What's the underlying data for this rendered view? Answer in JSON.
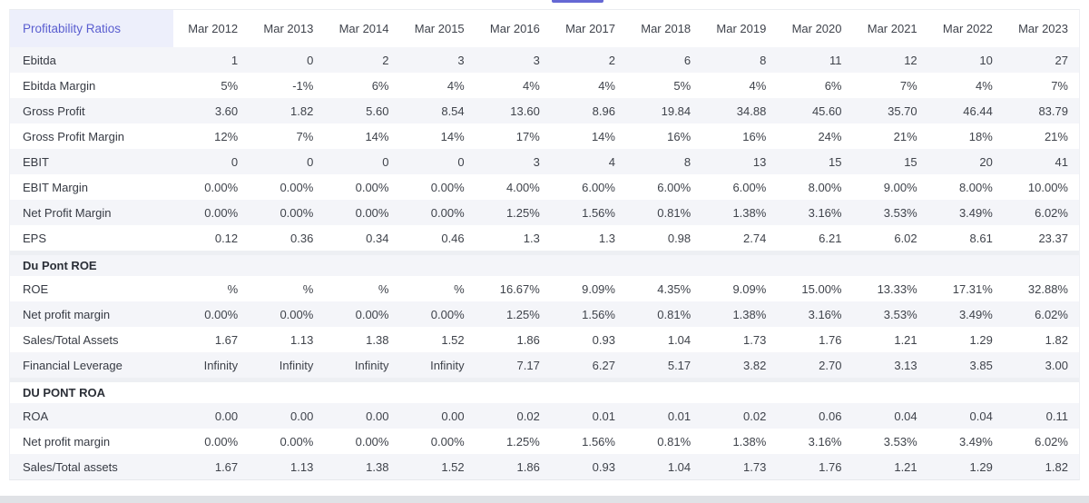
{
  "tabs": {
    "active_tab_indicator_color": "#6568d4"
  },
  "colors": {
    "title_text": "#5a5ed0",
    "title_background": "#edeffb",
    "row_stripe": "#f4f5f9",
    "bottom_bar": "#e0e2e6"
  },
  "table": {
    "title": "Profitability Ratios",
    "columns": [
      "Mar 2012",
      "Mar 2013",
      "Mar 2014",
      "Mar 2015",
      "Mar 2016",
      "Mar 2017",
      "Mar 2018",
      "Mar 2019",
      "Mar 2020",
      "Mar 2021",
      "Mar 2022",
      "Mar 2023"
    ],
    "rows": [
      {
        "label": "Ebitda",
        "type": "data",
        "values": [
          "1",
          "0",
          "2",
          "3",
          "3",
          "2",
          "6",
          "8",
          "11",
          "12",
          "10",
          "27"
        ]
      },
      {
        "label": "Ebitda Margin",
        "type": "data",
        "values": [
          "5%",
          "-1%",
          "6%",
          "4%",
          "4%",
          "4%",
          "5%",
          "4%",
          "6%",
          "7%",
          "4%",
          "7%"
        ]
      },
      {
        "label": "Gross Profit",
        "type": "data",
        "values": [
          "3.60",
          "1.82",
          "5.60",
          "8.54",
          "13.60",
          "8.96",
          "19.84",
          "34.88",
          "45.60",
          "35.70",
          "46.44",
          "83.79"
        ]
      },
      {
        "label": "Gross Profit Margin",
        "type": "data",
        "values": [
          "12%",
          "7%",
          "14%",
          "14%",
          "17%",
          "14%",
          "16%",
          "16%",
          "24%",
          "21%",
          "18%",
          "21%"
        ]
      },
      {
        "label": "EBIT",
        "type": "data",
        "values": [
          "0",
          "0",
          "0",
          "0",
          "3",
          "4",
          "8",
          "13",
          "15",
          "15",
          "20",
          "41"
        ]
      },
      {
        "label": "EBIT Margin",
        "type": "data",
        "values": [
          "0.00%",
          "0.00%",
          "0.00%",
          "0.00%",
          "4.00%",
          "6.00%",
          "6.00%",
          "6.00%",
          "8.00%",
          "9.00%",
          "8.00%",
          "10.00%"
        ]
      },
      {
        "label": "Net Profit Margin",
        "type": "data",
        "values": [
          "0.00%",
          "0.00%",
          "0.00%",
          "0.00%",
          "1.25%",
          "1.56%",
          "0.81%",
          "1.38%",
          "3.16%",
          "3.53%",
          "3.49%",
          "6.02%"
        ]
      },
      {
        "label": "EPS",
        "type": "data",
        "values": [
          "0.12",
          "0.36",
          "0.34",
          "0.46",
          "1.3",
          "1.3",
          "0.98",
          "2.74",
          "6.21",
          "6.02",
          "8.61",
          "23.37"
        ]
      },
      {
        "label": "Du Pont ROE",
        "type": "section",
        "values": []
      },
      {
        "label": "ROE",
        "type": "data",
        "values": [
          "%",
          "%",
          "%",
          "%",
          "16.67%",
          "9.09%",
          "4.35%",
          "9.09%",
          "15.00%",
          "13.33%",
          "17.31%",
          "32.88%"
        ]
      },
      {
        "label": "Net profit margin",
        "type": "data",
        "values": [
          "0.00%",
          "0.00%",
          "0.00%",
          "0.00%",
          "1.25%",
          "1.56%",
          "0.81%",
          "1.38%",
          "3.16%",
          "3.53%",
          "3.49%",
          "6.02%"
        ]
      },
      {
        "label": "Sales/Total Assets",
        "type": "data",
        "values": [
          "1.67",
          "1.13",
          "1.38",
          "1.52",
          "1.86",
          "0.93",
          "1.04",
          "1.73",
          "1.76",
          "1.21",
          "1.29",
          "1.82"
        ]
      },
      {
        "label": "Financial Leverage",
        "type": "data",
        "values": [
          "Infinity",
          "Infinity",
          "Infinity",
          "Infinity",
          "7.17",
          "6.27",
          "5.17",
          "3.82",
          "2.70",
          "3.13",
          "3.85",
          "3.00"
        ]
      },
      {
        "label": "DU PONT ROA",
        "type": "section",
        "values": []
      },
      {
        "label": "ROA",
        "type": "data",
        "values": [
          "0.00",
          "0.00",
          "0.00",
          "0.00",
          "0.02",
          "0.01",
          "0.01",
          "0.02",
          "0.06",
          "0.04",
          "0.04",
          "0.11"
        ]
      },
      {
        "label": "Net profit margin",
        "type": "data",
        "values": [
          "0.00%",
          "0.00%",
          "0.00%",
          "0.00%",
          "1.25%",
          "1.56%",
          "0.81%",
          "1.38%",
          "3.16%",
          "3.53%",
          "3.49%",
          "6.02%"
        ]
      },
      {
        "label": "Sales/Total assets",
        "type": "data",
        "values": [
          "1.67",
          "1.13",
          "1.38",
          "1.52",
          "1.86",
          "0.93",
          "1.04",
          "1.73",
          "1.76",
          "1.21",
          "1.29",
          "1.82"
        ]
      }
    ]
  }
}
